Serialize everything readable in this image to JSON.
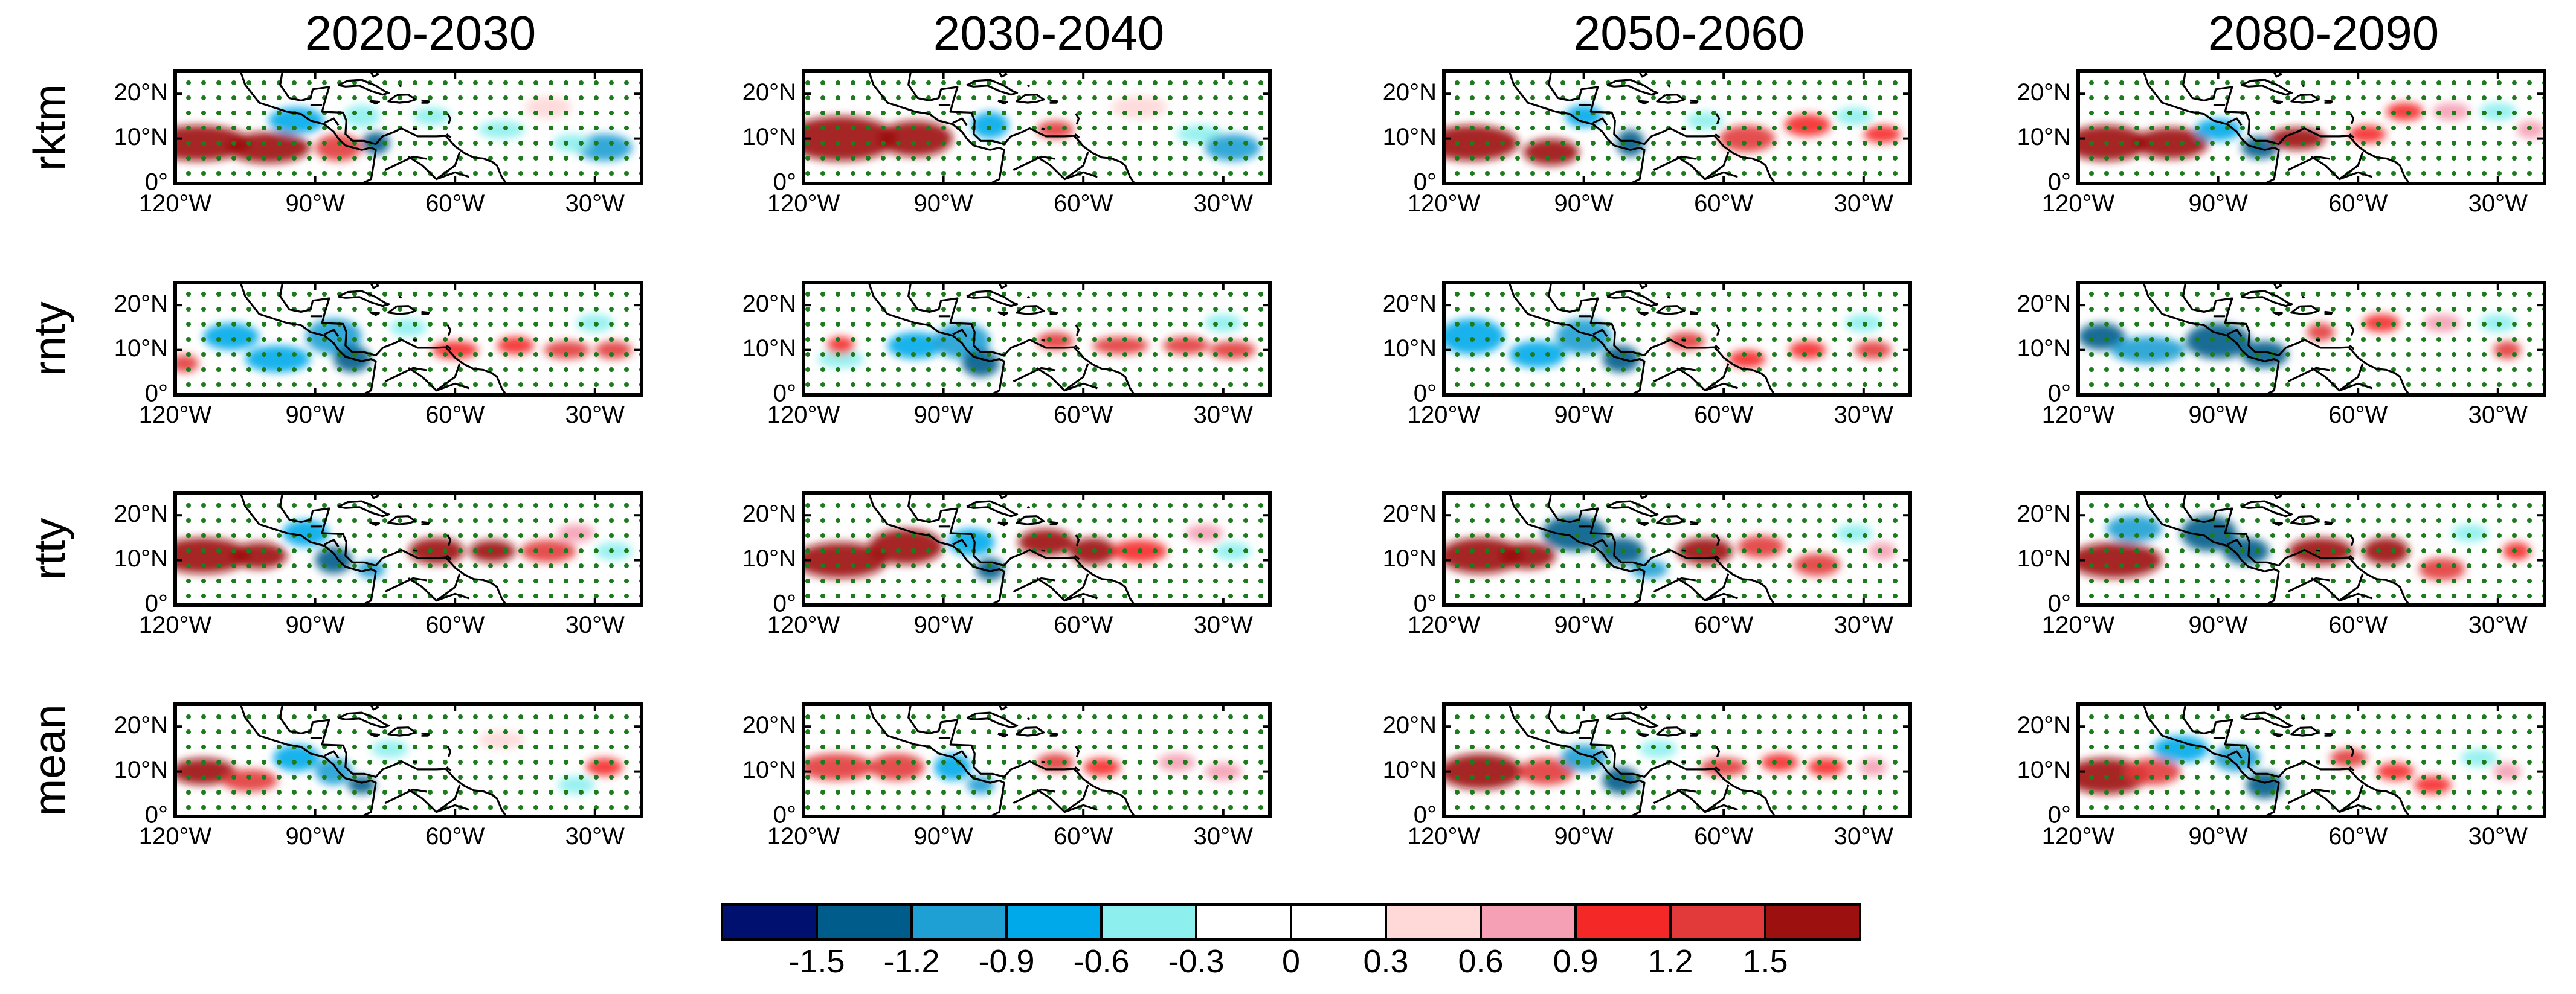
{
  "chart_data": {
    "type": "heatmap",
    "title": "",
    "columns": [
      "2020-2030",
      "2030-2040",
      "2050-2060",
      "2080-2090"
    ],
    "rows": [
      "rktm",
      "rnty",
      "rtty",
      "mean"
    ],
    "x_axis": {
      "range": [
        -120,
        -20
      ],
      "ticks": [
        -120,
        -90,
        -60,
        -30
      ],
      "tick_labels": [
        "120°W",
        "90°W",
        "60°W",
        "30°W"
      ]
    },
    "y_axis": {
      "range": [
        0,
        25
      ],
      "ticks": [
        0,
        10,
        20
      ],
      "tick_labels": [
        "0°",
        "10°N",
        "20°N"
      ]
    },
    "colorbar": {
      "levels": [
        -1.5,
        -1.2,
        -0.9,
        -0.6,
        -0.3,
        0,
        0.3,
        0.6,
        0.9,
        1.2,
        1.5
      ],
      "level_labels": [
        "-1.5",
        "-1.2",
        "-0.9",
        "-0.6",
        "-0.3",
        "0",
        "0.3",
        "0.6",
        "0.9",
        "1.2",
        "1.5"
      ],
      "colors": [
        "#00106e",
        "#005c8a",
        "#1ea0d4",
        "#00aaea",
        "#8ef0ee",
        "#ffffff",
        "#ffffff",
        "#ffd8d8",
        "#f5a0b4",
        "#f52828",
        "#e23a3a",
        "#9c1010"
      ]
    },
    "stipple_color": "#1d7a1d",
    "panels": [
      [
        {
          "lon": -115,
          "lat": 9,
          "v": 1.6,
          "rx": 11,
          "ry": 4
        },
        {
          "lon": -100,
          "lat": 8,
          "v": 1.6,
          "rx": 9,
          "ry": 3.5
        },
        {
          "lon": -85,
          "lat": 8,
          "v": 1.2,
          "rx": 5,
          "ry": 3
        },
        {
          "lon": -94,
          "lat": 14,
          "v": -0.9,
          "rx": 6,
          "ry": 3
        },
        {
          "lon": -80,
          "lat": 15,
          "v": -0.6,
          "rx": 4,
          "ry": 2.5
        },
        {
          "lon": -77,
          "lat": 9,
          "v": -1.4,
          "rx": 3,
          "ry": 2.5
        },
        {
          "lon": -65,
          "lat": 15,
          "v": -0.6,
          "rx": 4,
          "ry": 2
        },
        {
          "lon": -40,
          "lat": 17,
          "v": 0.5,
          "rx": 5,
          "ry": 2.5
        },
        {
          "lon": -50,
          "lat": 12,
          "v": -0.6,
          "rx": 5,
          "ry": 2
        },
        {
          "lon": -28,
          "lat": 8,
          "v": -1.2,
          "rx": 6,
          "ry": 3
        },
        {
          "lon": -35,
          "lat": 9,
          "v": -0.6,
          "rx": 4,
          "ry": 2
        }
      ],
      [
        {
          "lon": -112,
          "lat": 10,
          "v": 1.6,
          "rx": 12,
          "ry": 5
        },
        {
          "lon": -96,
          "lat": 10,
          "v": 1.6,
          "rx": 8,
          "ry": 4
        },
        {
          "lon": -80,
          "lat": 13,
          "v": -0.9,
          "rx": 4,
          "ry": 3
        },
        {
          "lon": -66,
          "lat": 12,
          "v": 1.2,
          "rx": 4,
          "ry": 2
        },
        {
          "lon": -48,
          "lat": 17,
          "v": 0.5,
          "rx": 6,
          "ry": 2.5
        },
        {
          "lon": -35,
          "lat": 11,
          "v": -0.6,
          "rx": 5,
          "ry": 2
        },
        {
          "lon": -28,
          "lat": 8,
          "v": -1.2,
          "rx": 6,
          "ry": 3
        }
      ],
      [
        {
          "lon": -114,
          "lat": 9,
          "v": 1.6,
          "rx": 10,
          "ry": 4
        },
        {
          "lon": -97,
          "lat": 7,
          "v": 1.5,
          "rx": 6,
          "ry": 3
        },
        {
          "lon": -90,
          "lat": 15,
          "v": -0.8,
          "rx": 4,
          "ry": 2.5
        },
        {
          "lon": -80,
          "lat": 9,
          "v": -1.4,
          "rx": 3,
          "ry": 3
        },
        {
          "lon": -64,
          "lat": 14,
          "v": -0.6,
          "rx": 4,
          "ry": 2
        },
        {
          "lon": -55,
          "lat": 10,
          "v": 1.2,
          "rx": 6,
          "ry": 3
        },
        {
          "lon": -42,
          "lat": 13,
          "v": 1.1,
          "rx": 5,
          "ry": 2.5
        },
        {
          "lon": -32,
          "lat": 15,
          "v": -0.6,
          "rx": 4,
          "ry": 2
        },
        {
          "lon": -26,
          "lat": 11,
          "v": 1.0,
          "rx": 4,
          "ry": 2
        }
      ],
      [
        {
          "lon": -114,
          "lat": 9,
          "v": 1.6,
          "rx": 9,
          "ry": 4
        },
        {
          "lon": -100,
          "lat": 9,
          "v": 1.6,
          "rx": 8,
          "ry": 3.5
        },
        {
          "lon": -90,
          "lat": 12,
          "v": -0.8,
          "rx": 5,
          "ry": 2.5
        },
        {
          "lon": -81,
          "lat": 8,
          "v": -1.5,
          "rx": 4,
          "ry": 2.5
        },
        {
          "lon": -73,
          "lat": 10,
          "v": 1.5,
          "rx": 6,
          "ry": 2.5
        },
        {
          "lon": -58,
          "lat": 11,
          "v": 1.1,
          "rx": 4,
          "ry": 2
        },
        {
          "lon": -50,
          "lat": 16,
          "v": 0.9,
          "rx": 4,
          "ry": 2
        },
        {
          "lon": -40,
          "lat": 16,
          "v": 0.7,
          "rx": 4,
          "ry": 2
        },
        {
          "lon": -30,
          "lat": 16,
          "v": -0.6,
          "rx": 4,
          "ry": 2
        },
        {
          "lon": -23,
          "lat": 12,
          "v": 0.6,
          "rx": 3,
          "ry": 2
        }
      ],
      [
        {
          "lon": -118,
          "lat": 7,
          "v": 1.2,
          "rx": 3,
          "ry": 2
        },
        {
          "lon": -108,
          "lat": 13,
          "v": -0.9,
          "rx": 6,
          "ry": 3
        },
        {
          "lon": -98,
          "lat": 8,
          "v": -0.9,
          "rx": 7,
          "ry": 3
        },
        {
          "lon": -86,
          "lat": 13,
          "v": -1.2,
          "rx": 6,
          "ry": 4
        },
        {
          "lon": -82,
          "lat": 8,
          "v": -1.5,
          "rx": 4,
          "ry": 3
        },
        {
          "lon": -70,
          "lat": 15,
          "v": -0.6,
          "rx": 4,
          "ry": 2
        },
        {
          "lon": -60,
          "lat": 10,
          "v": 1.1,
          "rx": 5,
          "ry": 2
        },
        {
          "lon": -47,
          "lat": 11,
          "v": 0.9,
          "rx": 4,
          "ry": 2
        },
        {
          "lon": -36,
          "lat": 10,
          "v": 1.2,
          "rx": 5,
          "ry": 2
        },
        {
          "lon": -26,
          "lat": 10,
          "v": 1.3,
          "rx": 4,
          "ry": 2
        },
        {
          "lon": -30,
          "lat": 16,
          "v": -0.6,
          "rx": 4,
          "ry": 2
        }
      ],
      [
        {
          "lon": -112,
          "lat": 8,
          "v": -0.6,
          "rx": 5,
          "ry": 2
        },
        {
          "lon": -112,
          "lat": 11,
          "v": 1.1,
          "rx": 3,
          "ry": 2
        },
        {
          "lon": -96,
          "lat": 11,
          "v": -0.9,
          "rx": 6,
          "ry": 3
        },
        {
          "lon": -86,
          "lat": 12,
          "v": -1.2,
          "rx": 6,
          "ry": 4
        },
        {
          "lon": -82,
          "lat": 7,
          "v": -1.5,
          "rx": 4,
          "ry": 3
        },
        {
          "lon": -66,
          "lat": 12,
          "v": 1.2,
          "rx": 4,
          "ry": 2
        },
        {
          "lon": -52,
          "lat": 11,
          "v": 1.2,
          "rx": 6,
          "ry": 2
        },
        {
          "lon": -38,
          "lat": 11,
          "v": 1.3,
          "rx": 5,
          "ry": 2
        },
        {
          "lon": -28,
          "lat": 10,
          "v": 1.2,
          "rx": 5,
          "ry": 2
        },
        {
          "lon": -30,
          "lat": 16,
          "v": -0.6,
          "rx": 4,
          "ry": 2
        }
      ],
      [
        {
          "lon": -114,
          "lat": 13,
          "v": -0.9,
          "rx": 7,
          "ry": 4
        },
        {
          "lon": -100,
          "lat": 9,
          "v": -0.9,
          "rx": 6,
          "ry": 3
        },
        {
          "lon": -90,
          "lat": 13,
          "v": -1.2,
          "rx": 6,
          "ry": 4
        },
        {
          "lon": -82,
          "lat": 8,
          "v": -1.5,
          "rx": 4,
          "ry": 3
        },
        {
          "lon": -68,
          "lat": 12,
          "v": 1.2,
          "rx": 4,
          "ry": 2
        },
        {
          "lon": -55,
          "lat": 8,
          "v": 1.1,
          "rx": 4,
          "ry": 2
        },
        {
          "lon": -42,
          "lat": 10,
          "v": 0.9,
          "rx": 4,
          "ry": 2
        },
        {
          "lon": -28,
          "lat": 10,
          "v": 1.2,
          "rx": 4,
          "ry": 2
        },
        {
          "lon": -30,
          "lat": 16,
          "v": -0.6,
          "rx": 4,
          "ry": 2
        }
      ],
      [
        {
          "lon": -115,
          "lat": 13,
          "v": -1.5,
          "rx": 5,
          "ry": 3
        },
        {
          "lon": -105,
          "lat": 10,
          "v": -1.2,
          "rx": 8,
          "ry": 3
        },
        {
          "lon": -90,
          "lat": 12,
          "v": -1.5,
          "rx": 7,
          "ry": 4
        },
        {
          "lon": -80,
          "lat": 9,
          "v": -1.3,
          "rx": 5,
          "ry": 3
        },
        {
          "lon": -68,
          "lat": 14,
          "v": 1.2,
          "rx": 3,
          "ry": 2
        },
        {
          "lon": -55,
          "lat": 16,
          "v": 0.9,
          "rx": 4,
          "ry": 2
        },
        {
          "lon": -42,
          "lat": 16,
          "v": 0.6,
          "rx": 4,
          "ry": 2
        },
        {
          "lon": -28,
          "lat": 10,
          "v": 1.2,
          "rx": 3,
          "ry": 2
        },
        {
          "lon": -30,
          "lat": 16,
          "v": -0.6,
          "rx": 4,
          "ry": 2
        }
      ],
      [
        {
          "lon": -114,
          "lat": 11,
          "v": 1.6,
          "rx": 10,
          "ry": 4
        },
        {
          "lon": -102,
          "lat": 11,
          "v": 1.5,
          "rx": 6,
          "ry": 3
        },
        {
          "lon": -92,
          "lat": 16,
          "v": -0.9,
          "rx": 5,
          "ry": 3
        },
        {
          "lon": -86,
          "lat": 10,
          "v": -1.5,
          "rx": 4,
          "ry": 3
        },
        {
          "lon": -78,
          "lat": 8,
          "v": -1.2,
          "rx": 3,
          "ry": 2
        },
        {
          "lon": -64,
          "lat": 12,
          "v": 1.5,
          "rx": 6,
          "ry": 3
        },
        {
          "lon": -52,
          "lat": 12,
          "v": 1.5,
          "rx": 5,
          "ry": 2.5
        },
        {
          "lon": -40,
          "lat": 12,
          "v": 1.2,
          "rx": 6,
          "ry": 2.5
        },
        {
          "lon": -34,
          "lat": 16,
          "v": 0.6,
          "rx": 4,
          "ry": 2
        },
        {
          "lon": -26,
          "lat": 12,
          "v": -0.6,
          "rx": 4,
          "ry": 2
        }
      ],
      [
        {
          "lon": -112,
          "lat": 10,
          "v": 1.6,
          "rx": 10,
          "ry": 4
        },
        {
          "lon": -98,
          "lat": 13,
          "v": 1.6,
          "rx": 8,
          "ry": 4
        },
        {
          "lon": -84,
          "lat": 14,
          "v": -0.9,
          "rx": 5,
          "ry": 3
        },
        {
          "lon": -80,
          "lat": 8,
          "v": -1.5,
          "rx": 3,
          "ry": 2.5
        },
        {
          "lon": -68,
          "lat": 14,
          "v": 1.5,
          "rx": 6,
          "ry": 3
        },
        {
          "lon": -58,
          "lat": 12,
          "v": 1.5,
          "rx": 5,
          "ry": 3
        },
        {
          "lon": -48,
          "lat": 12,
          "v": 1.1,
          "rx": 6,
          "ry": 2.5
        },
        {
          "lon": -34,
          "lat": 16,
          "v": 0.6,
          "rx": 4,
          "ry": 2
        },
        {
          "lon": -28,
          "lat": 12,
          "v": -0.6,
          "rx": 4,
          "ry": 2
        }
      ],
      [
        {
          "lon": -112,
          "lat": 11,
          "v": 1.6,
          "rx": 9,
          "ry": 4
        },
        {
          "lon": -102,
          "lat": 11,
          "v": 1.6,
          "rx": 6,
          "ry": 3
        },
        {
          "lon": -92,
          "lat": 16,
          "v": -1.3,
          "rx": 7,
          "ry": 4
        },
        {
          "lon": -82,
          "lat": 12,
          "v": -1.5,
          "rx": 5,
          "ry": 3
        },
        {
          "lon": -76,
          "lat": 8,
          "v": -1.2,
          "rx": 4,
          "ry": 2
        },
        {
          "lon": -64,
          "lat": 12,
          "v": 1.5,
          "rx": 6,
          "ry": 3
        },
        {
          "lon": -52,
          "lat": 13,
          "v": 1.2,
          "rx": 5,
          "ry": 2.5
        },
        {
          "lon": -40,
          "lat": 9,
          "v": 1.2,
          "rx": 5,
          "ry": 2.5
        },
        {
          "lon": -32,
          "lat": 16,
          "v": -0.6,
          "rx": 4,
          "ry": 2
        },
        {
          "lon": -26,
          "lat": 12,
          "v": 0.6,
          "rx": 3,
          "ry": 2
        }
      ],
      [
        {
          "lon": -112,
          "lat": 10,
          "v": 1.6,
          "rx": 10,
          "ry": 4
        },
        {
          "lon": -108,
          "lat": 17,
          "v": -1.2,
          "rx": 6,
          "ry": 3
        },
        {
          "lon": -92,
          "lat": 16,
          "v": -1.5,
          "rx": 6,
          "ry": 4
        },
        {
          "lon": -84,
          "lat": 12,
          "v": -1.5,
          "rx": 5,
          "ry": 3
        },
        {
          "lon": -68,
          "lat": 12,
          "v": 1.6,
          "rx": 7,
          "ry": 3
        },
        {
          "lon": -54,
          "lat": 12,
          "v": 1.5,
          "rx": 5,
          "ry": 3
        },
        {
          "lon": -42,
          "lat": 8,
          "v": 1.3,
          "rx": 5,
          "ry": 2.5
        },
        {
          "lon": -36,
          "lat": 16,
          "v": -0.6,
          "rx": 4,
          "ry": 2
        },
        {
          "lon": -26,
          "lat": 12,
          "v": 0.9,
          "rx": 3,
          "ry": 2
        }
      ],
      [
        {
          "lon": -114,
          "lat": 10,
          "v": 1.5,
          "rx": 7,
          "ry": 3
        },
        {
          "lon": -104,
          "lat": 8,
          "v": 1.2,
          "rx": 6,
          "ry": 2.5
        },
        {
          "lon": -94,
          "lat": 13,
          "v": -0.9,
          "rx": 5,
          "ry": 3
        },
        {
          "lon": -86,
          "lat": 10,
          "v": -1.2,
          "rx": 4,
          "ry": 3
        },
        {
          "lon": -80,
          "lat": 7,
          "v": -1.3,
          "rx": 3,
          "ry": 2
        },
        {
          "lon": -74,
          "lat": 15,
          "v": -0.6,
          "rx": 4,
          "ry": 2
        },
        {
          "lon": -50,
          "lat": 17,
          "v": 0.5,
          "rx": 5,
          "ry": 2
        },
        {
          "lon": -28,
          "lat": 11,
          "v": 1.1,
          "rx": 4,
          "ry": 2
        },
        {
          "lon": -34,
          "lat": 7,
          "v": -0.6,
          "rx": 4,
          "ry": 2
        }
      ],
      [
        {
          "lon": -113,
          "lat": 11,
          "v": 1.3,
          "rx": 8,
          "ry": 3
        },
        {
          "lon": -100,
          "lat": 11,
          "v": 1.2,
          "rx": 6,
          "ry": 3
        },
        {
          "lon": -88,
          "lat": 11,
          "v": -0.9,
          "rx": 4,
          "ry": 3
        },
        {
          "lon": -82,
          "lat": 7,
          "v": -1.2,
          "rx": 3,
          "ry": 2
        },
        {
          "lon": -66,
          "lat": 12,
          "v": 1.2,
          "rx": 4,
          "ry": 2
        },
        {
          "lon": -56,
          "lat": 11,
          "v": 0.9,
          "rx": 4,
          "ry": 2
        },
        {
          "lon": -40,
          "lat": 12,
          "v": 0.6,
          "rx": 4,
          "ry": 2
        },
        {
          "lon": -30,
          "lat": 10,
          "v": 0.6,
          "rx": 4,
          "ry": 2
        }
      ],
      [
        {
          "lon": -112,
          "lat": 10,
          "v": 1.5,
          "rx": 9,
          "ry": 4
        },
        {
          "lon": -98,
          "lat": 10,
          "v": 1.4,
          "rx": 6,
          "ry": 3
        },
        {
          "lon": -90,
          "lat": 13,
          "v": -1.2,
          "rx": 5,
          "ry": 3
        },
        {
          "lon": -82,
          "lat": 8,
          "v": -1.5,
          "rx": 4,
          "ry": 3
        },
        {
          "lon": -74,
          "lat": 15,
          "v": -0.6,
          "rx": 4,
          "ry": 2
        },
        {
          "lon": -60,
          "lat": 11,
          "v": 1.2,
          "rx": 5,
          "ry": 2
        },
        {
          "lon": -48,
          "lat": 12,
          "v": 0.9,
          "rx": 4,
          "ry": 2
        },
        {
          "lon": -38,
          "lat": 11,
          "v": 1.1,
          "rx": 4,
          "ry": 2
        },
        {
          "lon": -28,
          "lat": 11,
          "v": 0.6,
          "rx": 3,
          "ry": 2
        }
      ],
      [
        {
          "lon": -114,
          "lat": 9,
          "v": 1.6,
          "rx": 9,
          "ry": 4
        },
        {
          "lon": -104,
          "lat": 10,
          "v": 1.4,
          "rx": 6,
          "ry": 3
        },
        {
          "lon": -98,
          "lat": 15,
          "v": -0.9,
          "rx": 6,
          "ry": 3
        },
        {
          "lon": -86,
          "lat": 13,
          "v": -1.2,
          "rx": 5,
          "ry": 3
        },
        {
          "lon": -80,
          "lat": 7,
          "v": -1.5,
          "rx": 4,
          "ry": 3
        },
        {
          "lon": -62,
          "lat": 13,
          "v": 1.2,
          "rx": 4,
          "ry": 2
        },
        {
          "lon": -52,
          "lat": 10,
          "v": 0.9,
          "rx": 4,
          "ry": 2
        },
        {
          "lon": -44,
          "lat": 7,
          "v": 1.0,
          "rx": 4,
          "ry": 2
        },
        {
          "lon": -34,
          "lat": 13,
          "v": -0.6,
          "rx": 4,
          "ry": 2
        },
        {
          "lon": -28,
          "lat": 10,
          "v": 0.6,
          "rx": 3,
          "ry": 2
        }
      ]
    ]
  }
}
